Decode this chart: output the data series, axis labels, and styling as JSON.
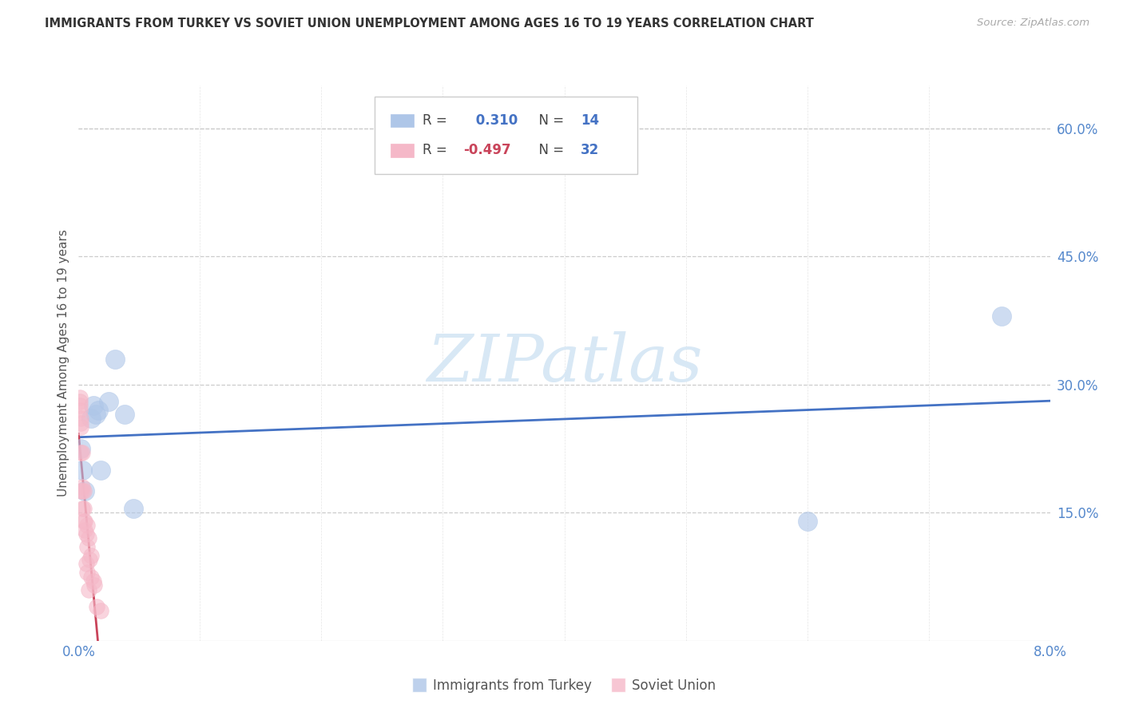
{
  "title": "IMMIGRANTS FROM TURKEY VS SOVIET UNION UNEMPLOYMENT AMONG AGES 16 TO 19 YEARS CORRELATION CHART",
  "source": "Source: ZipAtlas.com",
  "ylabel": "Unemployment Among Ages 16 to 19 years",
  "legend_turkey": "Immigrants from Turkey",
  "legend_soviet": "Soviet Union",
  "R_turkey": 0.31,
  "N_turkey": 14,
  "R_soviet": -0.497,
  "N_soviet": 32,
  "turkey_x": [
    0.0002,
    0.0003,
    0.0005,
    0.001,
    0.0012,
    0.0014,
    0.0016,
    0.0018,
    0.0025,
    0.003,
    0.0038,
    0.0045,
    0.06,
    0.076
  ],
  "turkey_y": [
    0.225,
    0.2,
    0.175,
    0.26,
    0.275,
    0.265,
    0.27,
    0.2,
    0.28,
    0.33,
    0.265,
    0.155,
    0.14,
    0.38
  ],
  "soviet_x": [
    0.0001,
    0.0001,
    0.0001,
    0.0001,
    0.0002,
    0.0002,
    0.0002,
    0.0002,
    0.0002,
    0.0003,
    0.0003,
    0.0003,
    0.0003,
    0.0004,
    0.0004,
    0.0004,
    0.0005,
    0.0005,
    0.0006,
    0.0006,
    0.0007,
    0.0007,
    0.0007,
    0.0008,
    0.0008,
    0.0009,
    0.001,
    0.001,
    0.0012,
    0.0013,
    0.0015,
    0.0018
  ],
  "soviet_y": [
    0.285,
    0.28,
    0.275,
    0.27,
    0.26,
    0.255,
    0.25,
    0.22,
    0.175,
    0.22,
    0.18,
    0.175,
    0.155,
    0.175,
    0.155,
    0.14,
    0.14,
    0.13,
    0.125,
    0.09,
    0.135,
    0.11,
    0.08,
    0.12,
    0.06,
    0.095,
    0.1,
    0.075,
    0.07,
    0.065,
    0.04,
    0.035
  ],
  "xlim": [
    0.0,
    0.08
  ],
  "ylim": [
    0.0,
    0.65
  ],
  "yticks_right": [
    0.15,
    0.3,
    0.45,
    0.6
  ],
  "xtick_labels_show": [
    "0.0%",
    "8.0%"
  ],
  "xtick_positions_show": [
    0.0,
    0.08
  ],
  "xtick_minor": [
    0.01,
    0.02,
    0.03,
    0.04,
    0.05,
    0.06,
    0.07
  ],
  "grid_color": "#cccccc",
  "blue_color": "#aec6e8",
  "pink_color": "#f5b8c8",
  "blue_line_color": "#4472c4",
  "pink_line_color": "#c9445a",
  "title_color": "#333333",
  "axis_tick_color": "#5588cc",
  "ylabel_color": "#555555",
  "watermark_text": "ZIPatlas",
  "watermark_color": "#d8e8f5",
  "background_color": "#ffffff",
  "legend_R_color": "#4472c4",
  "legend_Rneg_color": "#c9445a",
  "legend_N_color": "#4472c4"
}
